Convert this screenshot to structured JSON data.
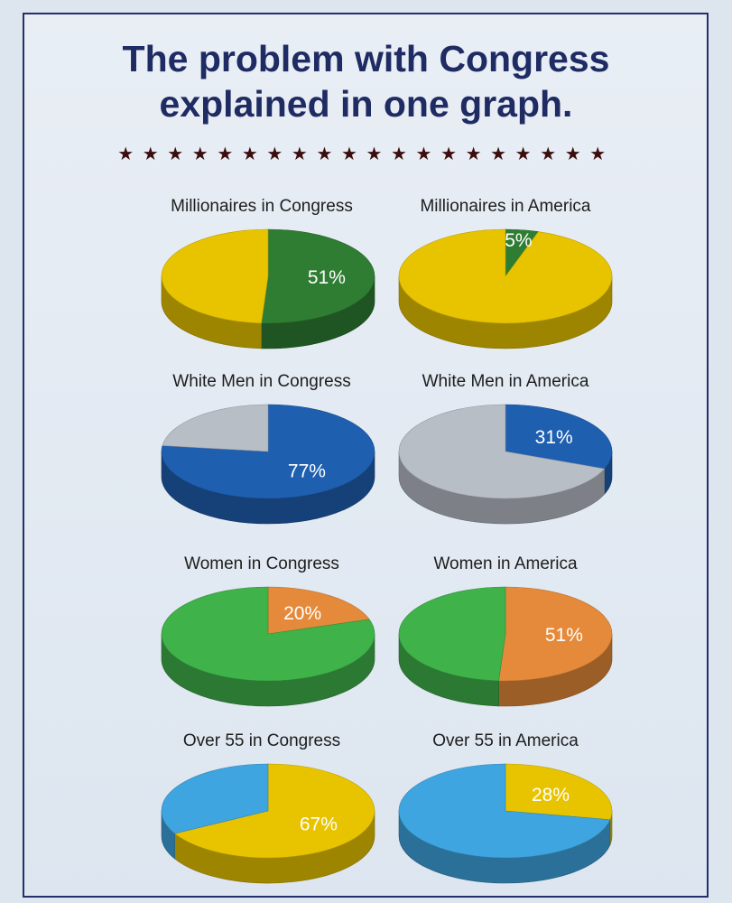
{
  "header": {
    "title_line1": "The problem with Congress",
    "title_line2": "explained in one graph.",
    "stars": "★★★★★★★★★★★★★★★★★★★★"
  },
  "colors": {
    "frame": "#23306a",
    "title": "#1f2b63",
    "stars": "#3b0d0d"
  },
  "chart_data": [
    {
      "type": "pie",
      "title": "Millionaires in Congress",
      "values": [
        51,
        49
      ],
      "value_label": "51%",
      "colors": [
        "#2e7d32",
        "#e8c400"
      ]
    },
    {
      "type": "pie",
      "title": "Millionaires in America",
      "values": [
        5,
        95
      ],
      "value_label": "5%",
      "colors": [
        "#2e7d32",
        "#e8c400"
      ]
    },
    {
      "type": "pie",
      "title": "White Men in Congress",
      "values": [
        77,
        23
      ],
      "value_label": "77%",
      "colors": [
        "#1f5fb0",
        "#b8bec6"
      ]
    },
    {
      "type": "pie",
      "title": "White Men in America",
      "values": [
        31,
        69
      ],
      "value_label": "31%",
      "colors": [
        "#1f5fb0",
        "#b8bec6"
      ]
    },
    {
      "type": "pie",
      "title": "Women in Congress",
      "values": [
        20,
        80
      ],
      "value_label": "20%",
      "colors": [
        "#e58a3a",
        "#3fb24a"
      ]
    },
    {
      "type": "pie",
      "title": "Women in America",
      "values": [
        51,
        49
      ],
      "value_label": "51%",
      "colors": [
        "#e58a3a",
        "#3fb24a"
      ]
    },
    {
      "type": "pie",
      "title": "Over 55 in Congress",
      "values": [
        67,
        33
      ],
      "value_label": "67%",
      "colors": [
        "#e8c400",
        "#3fa5e0"
      ]
    },
    {
      "type": "pie",
      "title": "Over 55 in America",
      "values": [
        28,
        72
      ],
      "value_label": "28%",
      "colors": [
        "#e8c400",
        "#3fa5e0"
      ]
    }
  ]
}
